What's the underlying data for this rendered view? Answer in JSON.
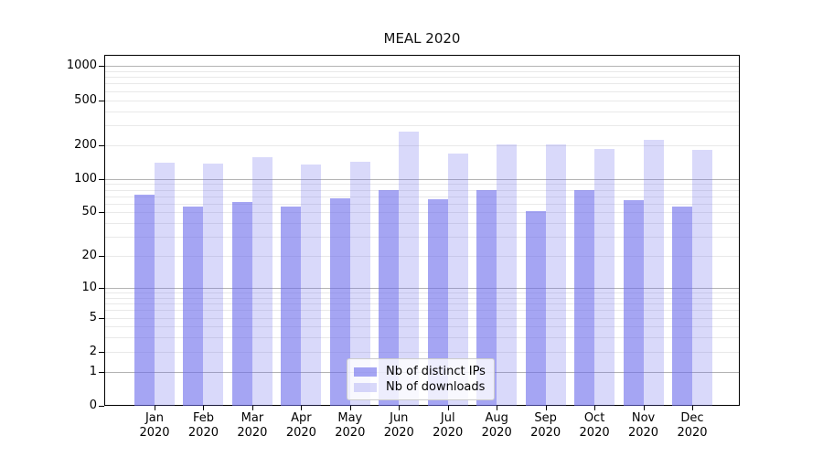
{
  "chart_data": {
    "type": "bar",
    "title": "MEAL 2020",
    "categories": [
      "Jan",
      "Feb",
      "Mar",
      "Apr",
      "May",
      "Jun",
      "Jul",
      "Aug",
      "Sep",
      "Oct",
      "Nov",
      "Dec"
    ],
    "year_label": "2020",
    "series": [
      {
        "name": "Nb of distinct IPs",
        "color": "rgba(105,105,235,0.6)",
        "values": [
          72,
          57,
          62,
          57,
          67,
          79,
          66,
          80,
          51,
          80,
          64,
          57
        ]
      },
      {
        "name": "Nb of downloads",
        "color": "rgba(105,105,235,0.25)",
        "values": [
          140,
          137,
          157,
          134,
          143,
          262,
          168,
          202,
          202,
          186,
          223,
          181
        ]
      }
    ],
    "yaxis": {
      "scale": "symlog",
      "tick_labels": [
        "0",
        "1",
        "2",
        "5",
        "10",
        "20",
        "50",
        "100",
        "200",
        "500",
        "1000"
      ],
      "tick_values": [
        0,
        1,
        2,
        5,
        10,
        20,
        50,
        100,
        200,
        500,
        1000
      ],
      "ymin": 0,
      "ymax": 1259
    },
    "grid": {
      "major_color": "#b3b3b3",
      "minor_color": "#e9e9e9",
      "major_values": [
        1,
        10,
        100,
        1000
      ]
    },
    "legend_position": "lower center",
    "colors": {
      "spine": "#000000",
      "background": "#ffffff",
      "text": "#000000"
    }
  }
}
